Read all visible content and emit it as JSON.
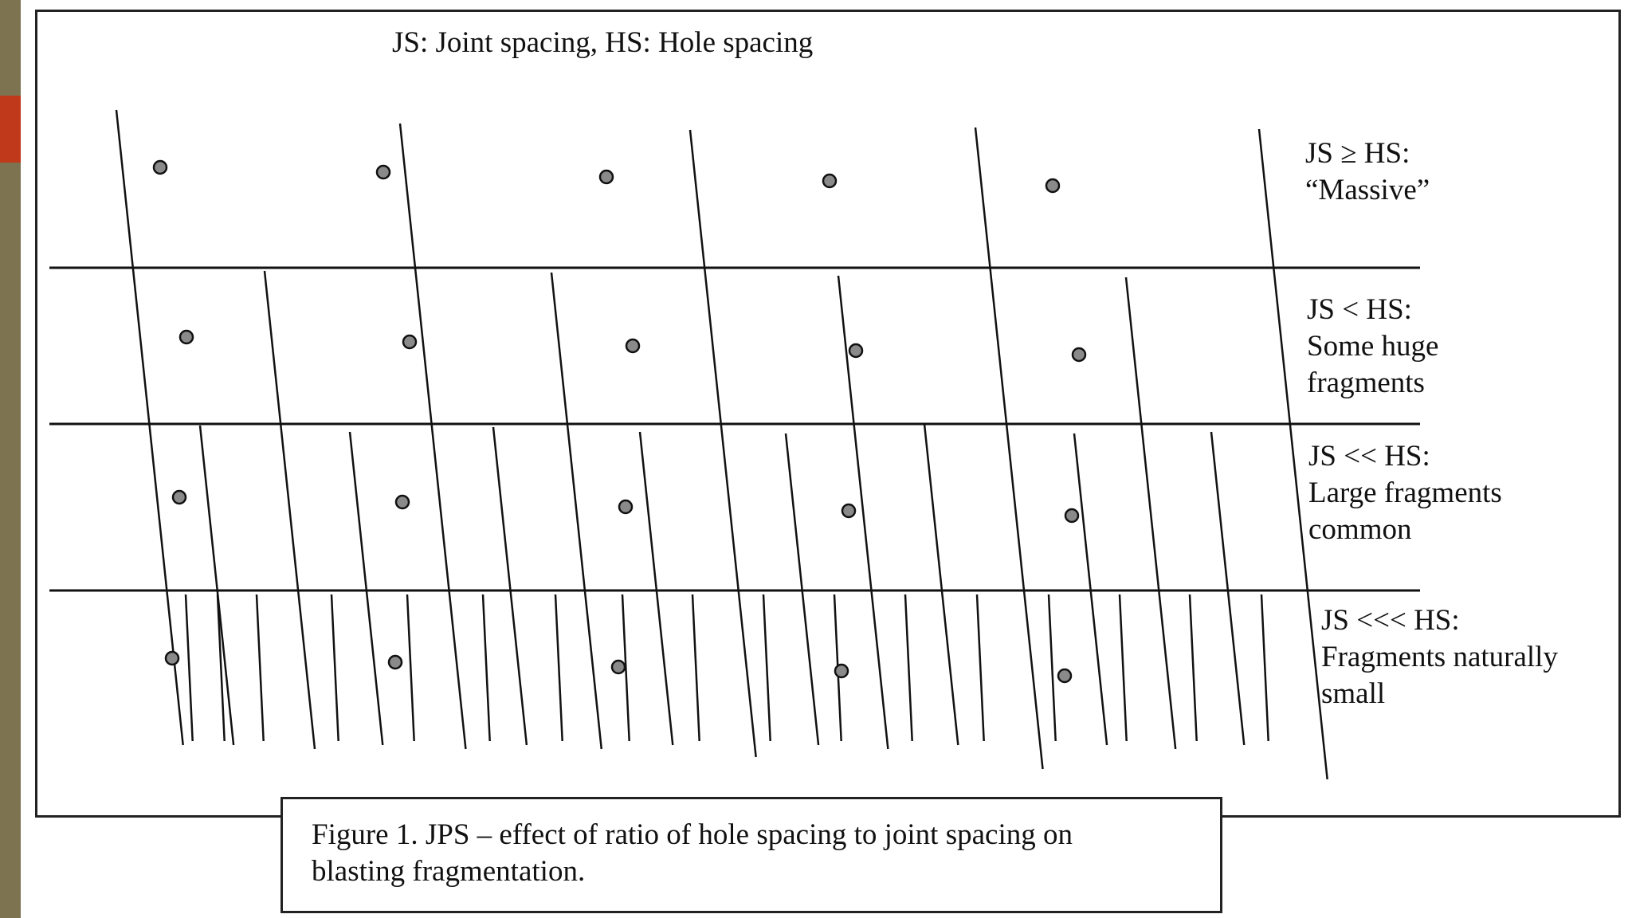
{
  "legend": "JS: Joint spacing, HS: Hole spacing",
  "bands": [
    {
      "line1": "JS ≥ HS:",
      "line2": "“Massive”",
      "line3": ""
    },
    {
      "line1": "JS < HS:",
      "line2": "Some huge",
      "line3": "fragments"
    },
    {
      "line1": "JS << HS:",
      "line2": "Large fragments",
      "line3": "common"
    },
    {
      "line1": "JS <<< HS:",
      "line2": "Fragments naturally",
      "line3": "small"
    }
  ],
  "caption": {
    "line1": "Figure 1. JPS – effect of ratio of hole spacing to joint spacing on",
    "line2": "blasting fragmentation."
  },
  "colors": {
    "sidebar": "#7d7350",
    "accent": "#c0391b",
    "hole_fill": "#8a8a8a",
    "line": "#111111"
  }
}
